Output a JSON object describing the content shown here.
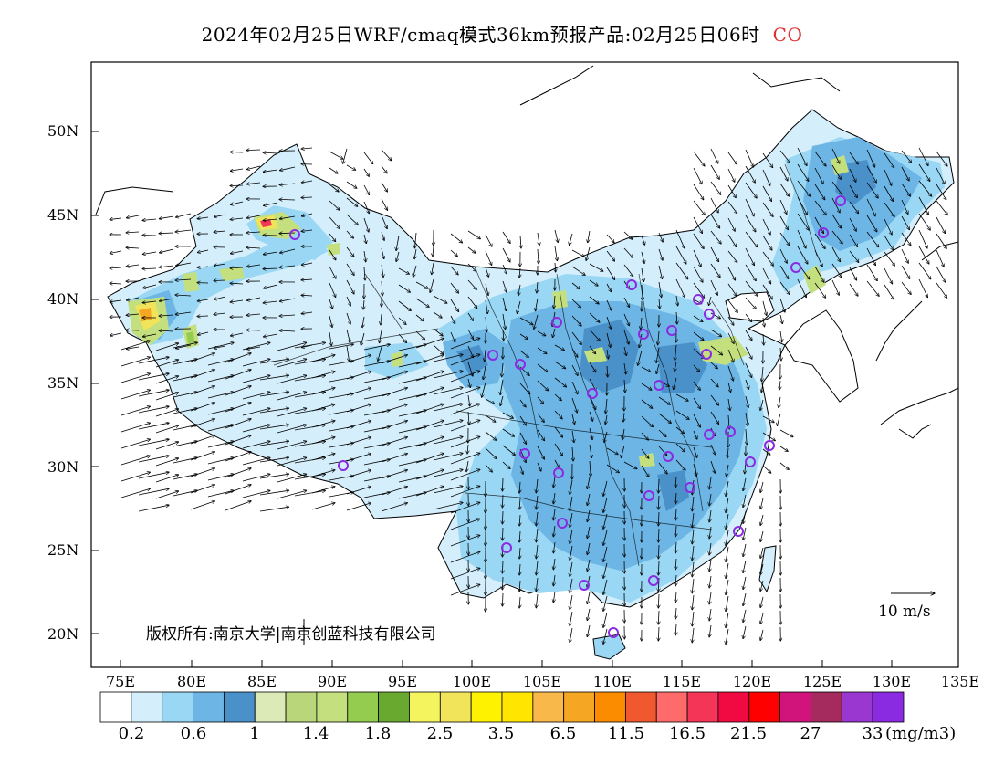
{
  "title": {
    "main": "2024年02月25日WRF/cmaq模式36km预报产品:02月25日06时",
    "species": "CO"
  },
  "copyright": "版权所有:南京大学|南京创蓝科技有限公司",
  "lat_labels": [
    "50N",
    "45N",
    "40N",
    "35N",
    "30N",
    "25N",
    "20N"
  ],
  "lon_labels": [
    "75E",
    "80E",
    "85E",
    "90E",
    "95E",
    "100E",
    "105E",
    "110E",
    "115E",
    "120E",
    "125E",
    "130E",
    "135E"
  ],
  "wind_reference": "10 m/s",
  "colorbar": {
    "colors": [
      "#ffffff",
      "#d4eefb",
      "#9ad7f4",
      "#6cb5e4",
      "#4a91c9",
      "#dceab8",
      "#b9d77a",
      "#c4e07e",
      "#93cc4e",
      "#6aa930",
      "#f4f55e",
      "#f2e45a",
      "#fff200",
      "#ffe500",
      "#f8b84a",
      "#f5a623",
      "#fb8c00",
      "#f0582f",
      "#ff6b6b",
      "#f53557",
      "#f00a41",
      "#ff0000",
      "#d0147c",
      "#a52b5e",
      "#9b37d1",
      "#8a2be2"
    ],
    "labels": [
      "0.2",
      "0.6",
      "1",
      "1.4",
      "1.8",
      "2.5",
      "3.5",
      "6.5",
      "11.5",
      "16.5",
      "21.5",
      "27",
      "33"
    ],
    "unit": "(mg/m3)"
  }
}
